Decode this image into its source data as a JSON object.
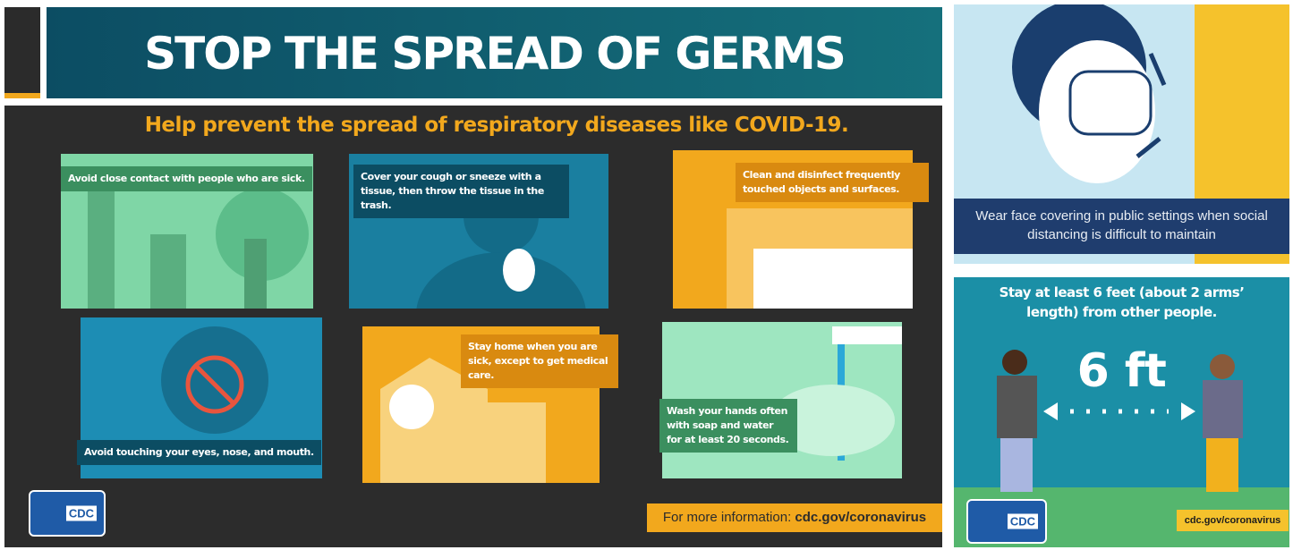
{
  "poster": {
    "title": "STOP THE SPREAD OF GERMS",
    "subtitle": "Help prevent the spread of respiratory diseases like COVID-19.",
    "tips": [
      "Avoid close contact with people who are sick.",
      "Cover your cough or sneeze with a tissue, then throw the tissue in the trash.",
      "Clean and disinfect frequently touched objects and surfaces.",
      "Avoid touching your eyes, nose, and mouth.",
      "Stay home when you are sick, except to get medical care.",
      "Wash your hands often with soap and water for at least 20 seconds."
    ],
    "logo": "CDC",
    "footer_label": "For more information:",
    "footer_link": "cdc.gov/coronavirus"
  },
  "mask_panel": {
    "caption": "Wear face covering in public settings when social distancing is difficult to maintain"
  },
  "distance_panel": {
    "heading": "Stay at least 6 feet (about 2 arms’ length) from other people.",
    "distance": "6 ft",
    "logo": "CDC",
    "link": "cdc.gov/coronavirus"
  }
}
